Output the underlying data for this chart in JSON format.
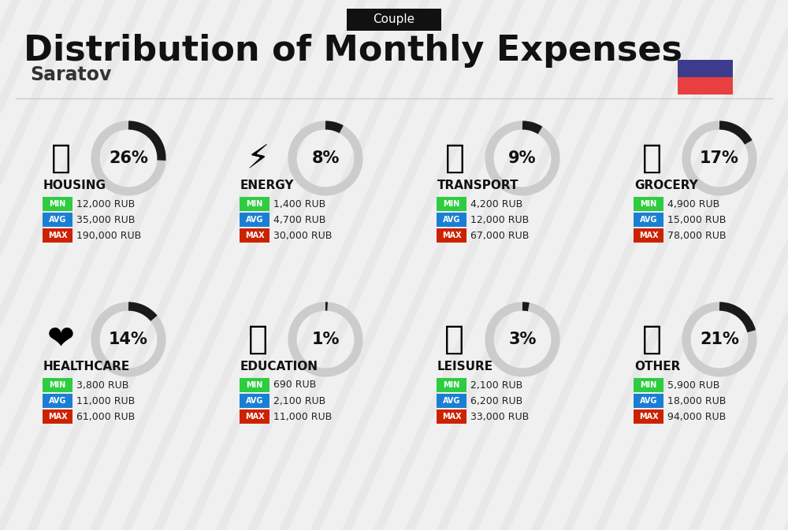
{
  "title": "Distribution of Monthly Expenses",
  "subtitle": "Couple",
  "location": "Saratov",
  "background_color": "#f0f0f0",
  "categories": [
    {
      "name": "HOUSING",
      "percent": 26,
      "min": "12,000 RUB",
      "avg": "35,000 RUB",
      "max": "190,000 RUB",
      "row": 0,
      "col": 0
    },
    {
      "name": "ENERGY",
      "percent": 8,
      "min": "1,400 RUB",
      "avg": "4,700 RUB",
      "max": "30,000 RUB",
      "row": 0,
      "col": 1
    },
    {
      "name": "TRANSPORT",
      "percent": 9,
      "min": "4,200 RUB",
      "avg": "12,000 RUB",
      "max": "67,000 RUB",
      "row": 0,
      "col": 2
    },
    {
      "name": "GROCERY",
      "percent": 17,
      "min": "4,900 RUB",
      "avg": "15,000 RUB",
      "max": "78,000 RUB",
      "row": 0,
      "col": 3
    },
    {
      "name": "HEALTHCARE",
      "percent": 14,
      "min": "3,800 RUB",
      "avg": "11,000 RUB",
      "max": "61,000 RUB",
      "row": 1,
      "col": 0
    },
    {
      "name": "EDUCATION",
      "percent": 1,
      "min": "690 RUB",
      "avg": "2,100 RUB",
      "max": "11,000 RUB",
      "row": 1,
      "col": 1
    },
    {
      "name": "LEISURE",
      "percent": 3,
      "min": "2,100 RUB",
      "avg": "6,200 RUB",
      "max": "33,000 RUB",
      "row": 1,
      "col": 2
    },
    {
      "name": "OTHER",
      "percent": 21,
      "min": "5,900 RUB",
      "avg": "18,000 RUB",
      "max": "94,000 RUB",
      "row": 1,
      "col": 3
    }
  ],
  "min_color": "#2ecc40",
  "avg_color": "#1a7fd4",
  "max_color": "#cc2200",
  "label_text_color": "#ffffff",
  "donut_dark": "#1a1a1a",
  "donut_light": "#cccccc",
  "russia_flag_top": "#3d3b8e",
  "russia_flag_bottom": "#e84040"
}
